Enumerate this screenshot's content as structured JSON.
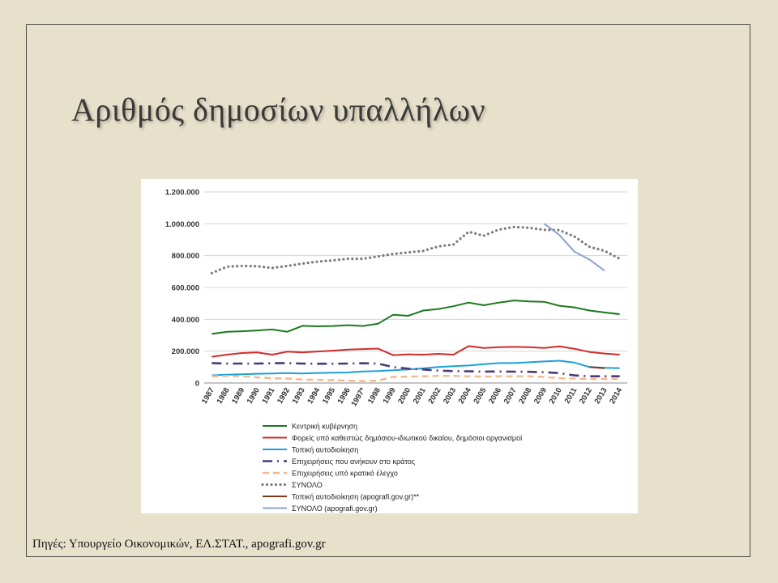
{
  "slide": {
    "title": "Αριθμός δημοσίων υπαλλήλων",
    "source": "Πηγές: Υπουργείο Οικονομικών, ΕΛ.ΣΤΑΤ., apografi.gov.gr"
  },
  "chart_data": {
    "type": "line",
    "title": "",
    "xlabel": "",
    "ylabel": "",
    "ylim": [
      0,
      1200000
    ],
    "y_ticks": [
      "0",
      "200.000",
      "400.000",
      "600.000",
      "800.000",
      "1.000.000",
      "1.200.000"
    ],
    "categories": [
      "1987",
      "1988",
      "1989",
      "1990",
      "1991",
      "1992",
      "1993",
      "1994",
      "1995",
      "1996",
      "1997*",
      "1998",
      "1999",
      "2000",
      "2001",
      "2002",
      "2003",
      "2004",
      "2005",
      "2006",
      "2007",
      "2008",
      "2009",
      "2010",
      "2011",
      "2012",
      "2013",
      "2014"
    ],
    "grid": "horizontal",
    "legend_position": "bottom",
    "series": [
      {
        "name": "Κεντρική κυβέρνηση",
        "color": "#1a7a1a",
        "style": "solid",
        "values": [
          308000,
          322000,
          325000,
          330000,
          336000,
          322000,
          359000,
          356000,
          358000,
          363000,
          358000,
          372000,
          428000,
          422000,
          455000,
          465000,
          482000,
          505000,
          488000,
          505000,
          518000,
          512000,
          510000,
          485000,
          475000,
          455000,
          443000,
          432000
        ]
      },
      {
        "name": "Φορείς υπό καθεστώς δημόσιου-ιδιωτικού δικαίου, δημόσιοι οργανισμοί",
        "color": "#d42a2a",
        "style": "solid",
        "values": [
          165000,
          178000,
          188000,
          192000,
          178000,
          197000,
          192000,
          198000,
          203000,
          210000,
          213000,
          216000,
          175000,
          180000,
          178000,
          183000,
          178000,
          232000,
          220000,
          225000,
          227000,
          225000,
          220000,
          230000,
          215000,
          195000,
          185000,
          178000
        ]
      },
      {
        "name": "Τοπική αυτοδιοίκηση",
        "color": "#1ca0d8",
        "style": "solid",
        "values": [
          48000,
          52000,
          55000,
          58000,
          60000,
          62000,
          60000,
          63000,
          65000,
          66000,
          72000,
          75000,
          80000,
          85000,
          92000,
          100000,
          105000,
          110000,
          118000,
          125000,
          125000,
          130000,
          135000,
          140000,
          128000,
          100000,
          95000,
          93000
        ]
      },
      {
        "name": "Επιχειρήσεις που ανήκουν στο κράτος",
        "color": "#4b3a78",
        "style": "dashdot",
        "values": [
          125000,
          122000,
          122000,
          122000,
          124000,
          125000,
          122000,
          121000,
          121000,
          122000,
          124000,
          122000,
          100000,
          90000,
          85000,
          78000,
          75000,
          73000,
          71000,
          72000,
          71000,
          70000,
          68000,
          62000,
          48000,
          42000,
          42000,
          42000
        ]
      },
      {
        "name": "Επιχειρήσεις υπό κρατικό έλεγχο",
        "color": "#f5b88a",
        "style": "dashed",
        "values": [
          42000,
          45000,
          42000,
          35000,
          30000,
          28000,
          22000,
          20000,
          18000,
          15000,
          12000,
          15000,
          38000,
          40000,
          42000,
          45000,
          45000,
          42000,
          40000,
          42000,
          42000,
          42000,
          38000,
          30000,
          28000,
          25000,
          26000,
          26000
        ]
      },
      {
        "name": "ΣΥΝΟΛΟ",
        "color": "#7a7a7a",
        "style": "dotted",
        "values": [
          690000,
          730000,
          735000,
          733000,
          722000,
          735000,
          750000,
          762000,
          770000,
          780000,
          780000,
          795000,
          810000,
          820000,
          830000,
          858000,
          870000,
          950000,
          925000,
          963000,
          980000,
          975000,
          962000,
          960000,
          920000,
          855000,
          830000,
          780000
        ]
      },
      {
        "name": "Τοπική αυτοδιοίκηση (apografi.gov.gr)**",
        "color": "#7a3a1a",
        "style": "solid",
        "values": [
          null,
          null,
          null,
          null,
          null,
          null,
          null,
          null,
          null,
          null,
          null,
          null,
          null,
          null,
          null,
          null,
          null,
          null,
          null,
          null,
          null,
          null,
          null,
          null,
          null,
          100000,
          93000,
          null
        ]
      },
      {
        "name": "ΣΥΝΟΛΟ (apografi.gov.gr)",
        "color": "#8aa4c8",
        "style": "solid",
        "values": [
          null,
          null,
          null,
          null,
          null,
          null,
          null,
          null,
          null,
          null,
          null,
          null,
          null,
          null,
          null,
          null,
          null,
          null,
          null,
          null,
          null,
          null,
          1000000,
          930000,
          825000,
          775000,
          705000,
          null
        ]
      }
    ]
  }
}
